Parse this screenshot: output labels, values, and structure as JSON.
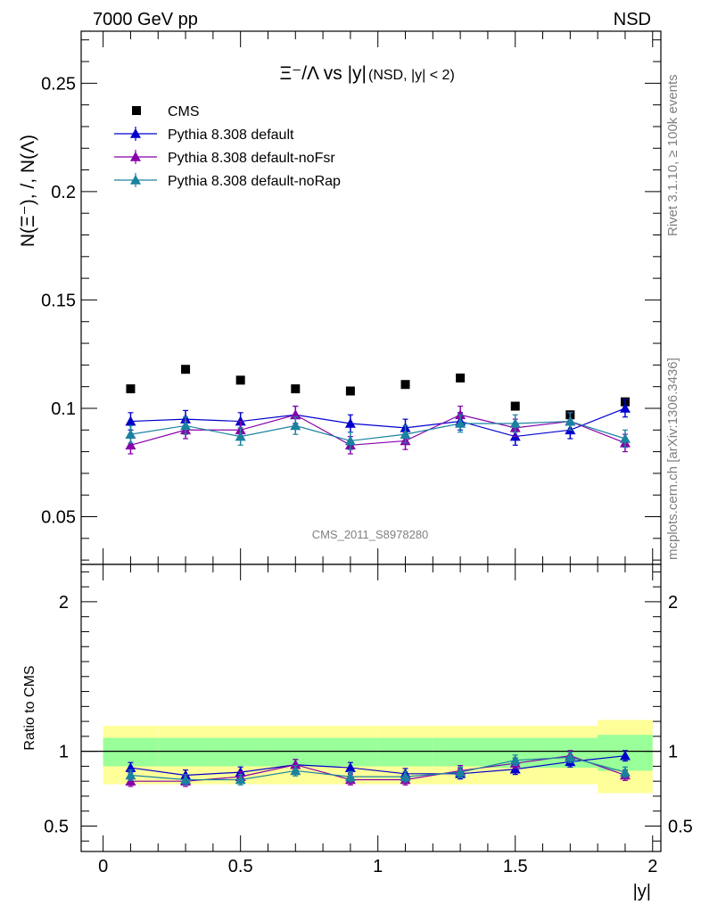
{
  "header": {
    "left": "7000 GeV pp",
    "right": "NSD"
  },
  "side_labels": {
    "top": "Rivet 3.1.10, ≥ 100k events",
    "bottom": "mcplots.cern.ch [arXiv:1306.3436]"
  },
  "watermark": "CMS_2011_S8978280",
  "chart_data": [
    {
      "type": "scatter",
      "title": "Ξ⁻/Λ vs |y|",
      "subtitle": "(NSD, |y| < 2)",
      "ylabel": "N(Ξ⁻), /, N(Λ)",
      "xlim": [
        -0.08,
        2.03
      ],
      "ylim": [
        0.028,
        0.274
      ],
      "yticks": [
        0.05,
        0.1,
        0.15,
        0.2,
        0.25
      ],
      "ytick_labels": [
        "0.05",
        "0.1",
        "0.15",
        "0.2",
        "0.25"
      ],
      "legend_position": "top-left",
      "x": [
        0.1,
        0.3,
        0.5,
        0.7,
        0.9,
        1.1,
        1.3,
        1.5,
        1.7,
        1.9
      ],
      "series": [
        {
          "name": "CMS",
          "marker": "square",
          "color": "#000000",
          "values": [
            0.109,
            0.118,
            0.113,
            0.109,
            0.108,
            0.111,
            0.114,
            0.101,
            0.097,
            0.103
          ]
        },
        {
          "name": "Pythia 8.308 default",
          "marker": "triangle",
          "color": "#0000cc",
          "values": [
            0.094,
            0.095,
            0.094,
            0.097,
            0.093,
            0.091,
            0.094,
            0.087,
            0.09,
            0.1
          ],
          "errors": [
            0.004,
            0.004,
            0.004,
            0.004,
            0.004,
            0.004,
            0.004,
            0.004,
            0.004,
            0.004
          ]
        },
        {
          "name": "Pythia 8.308 default-noFsr",
          "marker": "triangle",
          "color": "#8800aa",
          "values": [
            0.083,
            0.09,
            0.09,
            0.097,
            0.083,
            0.085,
            0.097,
            0.091,
            0.094,
            0.084
          ],
          "errors": [
            0.004,
            0.004,
            0.004,
            0.004,
            0.004,
            0.004,
            0.004,
            0.004,
            0.004,
            0.004
          ]
        },
        {
          "name": "Pythia 8.308 default-noRap",
          "marker": "triangle",
          "color": "#1a82a0",
          "values": [
            0.088,
            0.092,
            0.087,
            0.092,
            0.085,
            0.088,
            0.093,
            0.093,
            0.094,
            0.086
          ],
          "errors": [
            0.004,
            0.004,
            0.004,
            0.004,
            0.004,
            0.004,
            0.004,
            0.004,
            0.004,
            0.004
          ]
        }
      ]
    },
    {
      "type": "scatter",
      "xlabel": "|y|",
      "ylabel": "Ratio to CMS",
      "xlim": [
        -0.08,
        2.03
      ],
      "ylim": [
        0.33,
        2.25
      ],
      "yticks": [
        0.5,
        1,
        2
      ],
      "ytick_labels": [
        "0.5",
        "1",
        "2"
      ],
      "xticks": [
        0,
        0.5,
        1,
        1.5,
        2
      ],
      "xtick_labels": [
        "0",
        "0.5",
        "1",
        "1.5",
        "2"
      ],
      "x": [
        0.1,
        0.3,
        0.5,
        0.7,
        0.9,
        1.1,
        1.3,
        1.5,
        1.7,
        1.9
      ],
      "band_edges": [
        0.0,
        0.2,
        0.4,
        0.6,
        0.8,
        1.0,
        1.2,
        1.4,
        1.6,
        1.8,
        2.0
      ],
      "band_yellow_low": [
        0.78,
        0.78,
        0.78,
        0.78,
        0.78,
        0.78,
        0.78,
        0.78,
        0.78,
        0.72
      ],
      "band_yellow_high": [
        1.17,
        1.17,
        1.17,
        1.17,
        1.17,
        1.17,
        1.17,
        1.17,
        1.17,
        1.21
      ],
      "band_green_low": [
        0.9,
        0.9,
        0.9,
        0.9,
        0.9,
        0.9,
        0.9,
        0.89,
        0.89,
        0.87
      ],
      "band_green_high": [
        1.09,
        1.09,
        1.09,
        1.09,
        1.09,
        1.09,
        1.09,
        1.09,
        1.09,
        1.11
      ],
      "series": [
        {
          "name": "Pythia 8.308 default",
          "color": "#0000cc",
          "values": [
            0.89,
            0.84,
            0.86,
            0.91,
            0.89,
            0.85,
            0.85,
            0.88,
            0.93,
            0.97
          ],
          "errors": [
            0.035,
            0.035,
            0.035,
            0.035,
            0.035,
            0.035,
            0.035,
            0.035,
            0.035,
            0.035
          ]
        },
        {
          "name": "Pythia 8.308 default-noFsr",
          "color": "#8800aa",
          "values": [
            0.8,
            0.8,
            0.83,
            0.91,
            0.81,
            0.81,
            0.87,
            0.92,
            0.97,
            0.84
          ],
          "errors": [
            0.035,
            0.035,
            0.035,
            0.035,
            0.035,
            0.035,
            0.035,
            0.035,
            0.035,
            0.035
          ]
        },
        {
          "name": "Pythia 8.308 default-noRap",
          "color": "#1a82a0",
          "values": [
            0.84,
            0.81,
            0.81,
            0.87,
            0.83,
            0.83,
            0.86,
            0.94,
            0.96,
            0.86
          ],
          "errors": [
            0.035,
            0.035,
            0.035,
            0.035,
            0.035,
            0.035,
            0.035,
            0.035,
            0.035,
            0.035
          ]
        }
      ]
    }
  ]
}
